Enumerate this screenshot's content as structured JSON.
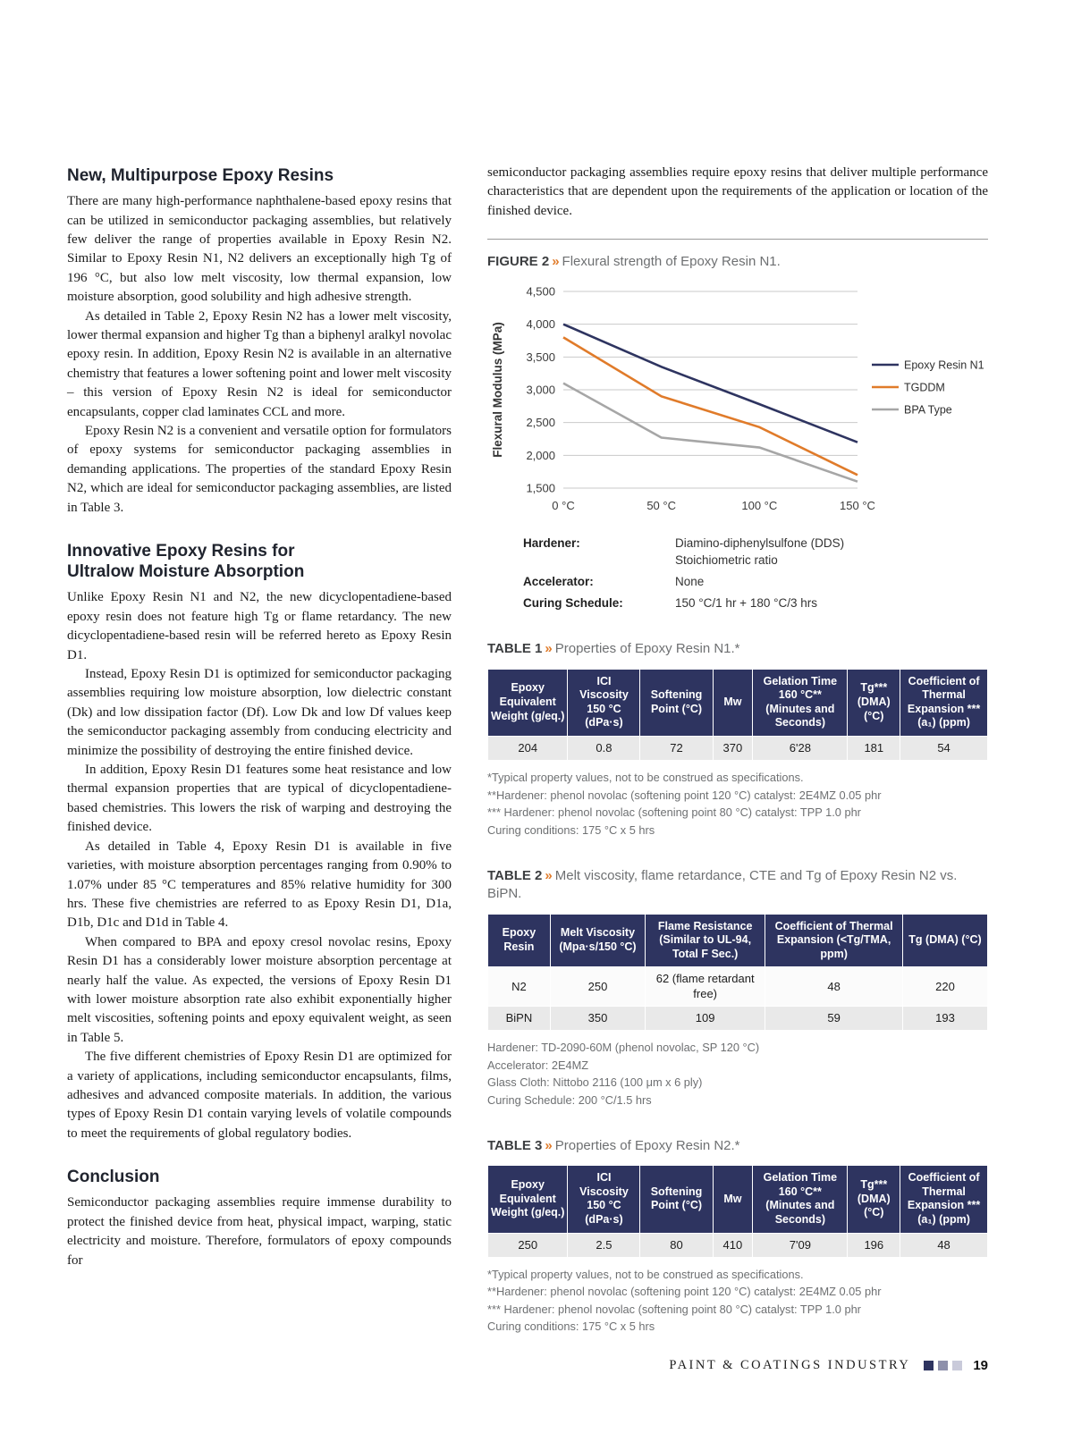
{
  "meta": {
    "chevron": "»",
    "accent_orange": "#e07b2a",
    "navy": "#2e3460"
  },
  "left_column": {
    "sections": [
      {
        "heading": "New, Multipurpose Epoxy Resins",
        "paragraphs": [
          "There are many high-performance naphthalene-based epoxy resins that can be utilized in semiconductor packaging assemblies, but relatively few deliver the range of properties available in Epoxy Resin N2. Similar to Epoxy Resin N1, N2 delivers an exceptionally high Tg of 196 °C, but also low melt viscosity, low thermal expansion, low moisture absorption, good solubility and high adhesive strength.",
          "As detailed in Table 2, Epoxy Resin N2 has a lower melt viscosity, lower thermal expansion and higher Tg than a biphenyl aralkyl novolac epoxy resin. In addition, Epoxy Resin N2 is available in an alternative chemistry that features a lower softening point and lower melt viscosity – this version of Epoxy Resin N2 is ideal for semiconductor encapsulants, copper clad laminates CCL and more.",
          "Epoxy Resin N2 is a convenient and versatile option for formulators of epoxy systems for semiconductor packaging assemblies in demanding applications. The properties of the standard Epoxy Resin N2, which are ideal for semiconductor packaging assemblies, are listed in Table 3."
        ]
      },
      {
        "heading": "Innovative Epoxy Resins for\nUltralow Moisture Absorption",
        "paragraphs": [
          "Unlike Epoxy Resin N1 and N2, the new dicyclopentadiene-based epoxy resin does not feature high Tg or flame retardancy. The new dicyclopentadiene-based resin will be referred hereto as Epoxy Resin D1.",
          "Instead, Epoxy Resin D1 is optimized for semiconductor packaging assemblies requiring low moisture absorption, low dielectric constant (Dk) and low dissipation factor (Df). Low Dk and low Df values keep the semiconductor packaging assembly from conducing electricity and minimize the possibility of destroying the entire finished device.",
          "In addition, Epoxy Resin D1 features some heat resistance and low thermal expansion properties that are typical of dicyclopentadiene-based chemistries. This lowers the risk of warping and destroying the finished device.",
          "As detailed in Table 4, Epoxy Resin D1 is available in five varieties, with moisture absorption percentages ranging from 0.90% to 1.07% under 85 °C temperatures and 85% relative humidity for 300 hrs. These five chemistries are referred to as Epoxy Resin D1, D1a, D1b, D1c and D1d in Table 4.",
          "When compared to BPA and epoxy cresol novolac resins, Epoxy Resin D1 has a considerably lower moisture absorption percentage at nearly half the value. As expected, the versions of Epoxy Resin D1 with lower moisture absorption rate also exhibit exponentially higher melt viscosities, softening points and epoxy equivalent weight, as seen in Table 5.",
          "The five different chemistries of Epoxy Resin D1 are optimized for a variety of applications, including semiconductor encapsulants, films, adhesives and advanced composite materials. In addition, the various types of Epoxy Resin D1 contain varying levels of volatile compounds to meet the requirements of global regulatory bodies."
        ]
      },
      {
        "heading": "Conclusion",
        "paragraphs": [
          "Semiconductor packaging assemblies require immense durability to protect the finished device from heat, physical impact, warping, static electricity and moisture. Therefore, formulators of epoxy compounds for"
        ]
      }
    ]
  },
  "right_column": {
    "intro_paragraph": "semiconductor packaging assemblies require epoxy resins that deliver multiple performance characteristics that are dependent upon the requirements of the application or location of the finished device.",
    "figure": {
      "label": "FIGURE 2",
      "caption": "Flexural strength of Epoxy Resin N1.",
      "details": [
        {
          "term": "Hardener:",
          "value": "Diamino-diphenylsulfone (DDS)\nStoichiometric ratio"
        },
        {
          "term": "Accelerator:",
          "value": "None"
        },
        {
          "term": "Curing Schedule:",
          "value": "150 °C/1 hr + 180 °C/3 hrs"
        }
      ]
    }
  },
  "chart_data": {
    "type": "line",
    "title": "Flexural strength of Epoxy Resin N1",
    "xlabel": "",
    "ylabel": "Flexural Modulus (MPa)",
    "x": [
      0,
      50,
      100,
      150
    ],
    "x_tick_labels": [
      "0 °C",
      "50 °C",
      "100 °C",
      "150 °C"
    ],
    "ylim": [
      1500,
      4500
    ],
    "y_ticks": [
      1500,
      2000,
      2500,
      3000,
      3500,
      4000,
      4500
    ],
    "grid": "horizontal",
    "legend_position": "right",
    "series": [
      {
        "name": "Epoxy Resin N1",
        "color": "#2e3460",
        "values": [
          4000,
          3350,
          2780,
          2200
        ]
      },
      {
        "name": "TGDDM",
        "color": "#e07b2a",
        "values": [
          3800,
          2900,
          2430,
          1700
        ]
      },
      {
        "name": "BPA Type",
        "color": "#a6a6a6",
        "values": [
          3100,
          2270,
          2120,
          1600
        ]
      }
    ]
  },
  "tables": [
    {
      "label": "TABLE 1",
      "caption": "Properties of Epoxy Resin N1.*",
      "headers": [
        "Epoxy Equivalent Weight (g/eq.)",
        "ICI Viscosity 150 °C (dPa·s)",
        "Softening Point (°C)",
        "Mw",
        "Gelation Time 160 °C** (Minutes and Seconds)",
        "Tg*** (DMA) (°C)",
        "Coefficient of Thermal Expansion ***(a₁) (ppm)"
      ],
      "rows": [
        [
          "204",
          "0.8",
          "72",
          "370",
          "6'28",
          "181",
          "54"
        ]
      ],
      "footnotes": [
        "*Typical property values, not to be construed as specifications.",
        "**Hardener: phenol novolac (softening point 120 °C) catalyst: 2E4MZ 0.05 phr",
        "*** Hardener: phenol novolac (softening point 80 °C) catalyst: TPP 1.0 phr",
        "Curing conditions: 175 °C x 5 hrs"
      ]
    },
    {
      "label": "TABLE 2",
      "caption": "Melt viscosity, flame retardance, CTE and Tg of Epoxy Resin N2 vs. BiPN.",
      "headers": [
        "Epoxy Resin",
        "Melt Viscosity (Mpa·s/150 °C)",
        "Flame Resistance (Similar to UL-94, Total F Sec.)",
        "Coefficient of Thermal Expansion (<Tg/TMA, ppm)",
        "Tg (DMA) (°C)"
      ],
      "rows": [
        [
          "N2",
          "250",
          "62 (flame retardant free)",
          "48",
          "220"
        ],
        [
          "BiPN",
          "350",
          "109",
          "59",
          "193"
        ]
      ],
      "footnotes": [
        "Hardener: TD-2090-60M (phenol novolac, SP 120 °C)",
        "Accelerator: 2E4MZ",
        "Glass Cloth: Nittobo 2116 (100 μm x 6 ply)",
        "Curing Schedule: 200 °C/1.5 hrs"
      ]
    },
    {
      "label": "TABLE 3",
      "caption": "Properties of Epoxy Resin N2.*",
      "headers": [
        "Epoxy Equivalent Weight (g/eq.)",
        "ICI Viscosity 150 °C (dPa·s)",
        "Softening Point (°C)",
        "Mw",
        "Gelation Time 160 °C** (Minutes and Seconds)",
        "Tg*** (DMA) (°C)",
        "Coefficient of Thermal Expansion ***(a₁) (ppm)"
      ],
      "rows": [
        [
          "250",
          "2.5",
          "80",
          "410",
          "7'09",
          "196",
          "48"
        ]
      ],
      "footnotes": [
        "*Typical property values, not to be construed as specifications.",
        "**Hardener: phenol novolac (softening point 120 °C) catalyst: 2E4MZ 0.05 phr",
        "*** Hardener: phenol novolac (softening point 80 °C) catalyst: TPP 1.0 phr",
        "Curing conditions: 175 °C x 5 hrs"
      ]
    }
  ],
  "footer": {
    "journal": "PAINT & COATINGS INDUSTRY",
    "page_number": "19",
    "square_colors": [
      "#2e3460",
      "#8e90ab",
      "#c9cada"
    ]
  }
}
